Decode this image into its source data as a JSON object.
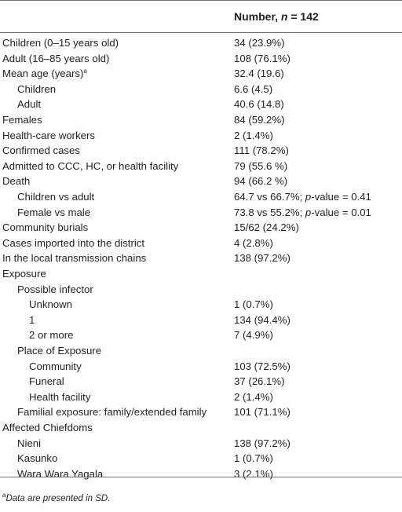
{
  "table": {
    "header": {
      "label": "",
      "value_prefix": "Number, ",
      "value_n": "n",
      "value_suffix": " = 142"
    },
    "rows": [
      {
        "label": "Children (0–15 years old)",
        "value": "34 (23.9%)",
        "indent": 0
      },
      {
        "label": "Adult (16–85 years old)",
        "value": "108 (76.1%)",
        "indent": 0
      },
      {
        "label": "Mean age (years)",
        "label_sup": "a",
        "value": "32.4 (19.6)",
        "indent": 0
      },
      {
        "label": "Children",
        "value": "6.6 (4.5)",
        "indent": 1
      },
      {
        "label": "Adult",
        "value": "40.6 (14.8)",
        "indent": 1
      },
      {
        "label": "Females",
        "value": "84 (59.2%)",
        "indent": 0
      },
      {
        "label": "Health-care workers",
        "value": "2 (1.4%)",
        "indent": 0
      },
      {
        "label": "Confirmed cases",
        "value": "111 (78.2%)",
        "indent": 0
      },
      {
        "label": "Admitted to CCC, HC, or health facility",
        "value": "79 (55.6 %)",
        "indent": 0
      },
      {
        "label": "Death",
        "value": "94 (66.2 %)",
        "indent": 0
      },
      {
        "label": "Children vs adult",
        "value_pre": "64.7 vs 66.7%; ",
        "value_ital": "p",
        "value_post": "-value = 0.41",
        "indent": 1
      },
      {
        "label": "Female vs male",
        "value_pre": "73.8 vs 55.2%; ",
        "value_ital": "p",
        "value_post": "-value = 0.01",
        "indent": 1
      },
      {
        "label": "Community burials",
        "value": "15/62 (24.2%)",
        "indent": 0
      },
      {
        "label": "Cases imported into the district",
        "value": "4 (2.8%)",
        "indent": 0
      },
      {
        "label": "In the local transmission chains",
        "value": "138 (97.2%)",
        "indent": 0
      },
      {
        "label": "Exposure",
        "value": "",
        "indent": 0
      },
      {
        "label": "Possible infector",
        "value": "",
        "indent": 1
      },
      {
        "label": "Unknown",
        "value": "1 (0.7%)",
        "indent": 2
      },
      {
        "label": "1",
        "value": "134 (94.4%)",
        "indent": 2
      },
      {
        "label": "2 or more",
        "value": "7 (4.9%)",
        "indent": 2
      },
      {
        "label": "Place of Exposure",
        "value": "",
        "indent": 1
      },
      {
        "label": "Community",
        "value": "103 (72.5%)",
        "indent": 2
      },
      {
        "label": "Funeral",
        "value": "37 (26.1%)",
        "indent": 2
      },
      {
        "label": "Health facility",
        "value": "2 (1.4%)",
        "indent": 2
      },
      {
        "label": "Familial exposure: family/extended family",
        "value": "101 (71.1%)",
        "indent": 1
      },
      {
        "label": "Affected Chiefdoms",
        "value": "",
        "indent": 0
      },
      {
        "label": "Nieni",
        "value": "138 (97.2%)",
        "indent": 1
      },
      {
        "label": "Kasunko",
        "value": "1 (0.7%)",
        "indent": 1
      },
      {
        "label": "Wara Wara Yagala",
        "value": "3 (2.1%)",
        "indent": 1
      }
    ],
    "footnote": {
      "marker": "a",
      "text": "Data are presented in SD."
    }
  }
}
